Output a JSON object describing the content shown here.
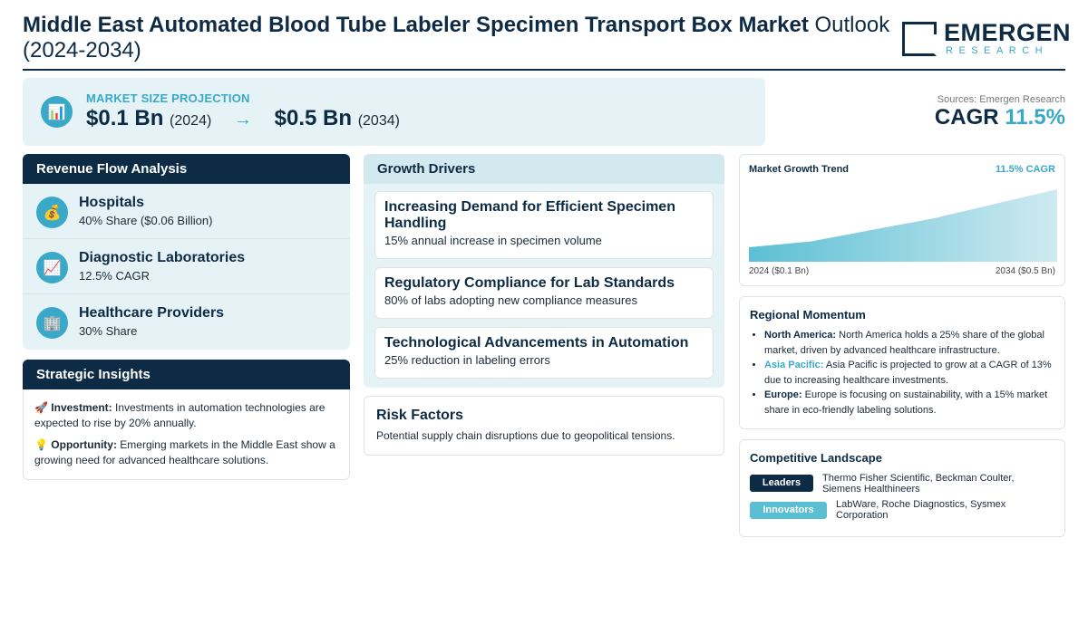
{
  "header": {
    "title_bold": "Middle East Automated Blood Tube Labeler Specimen Transport Box Market",
    "title_light": "Outlook (2024-2034)",
    "logo_main": "EMERGEN",
    "logo_sub": "RESEARCH"
  },
  "projection": {
    "label": "MARKET SIZE PROJECTION",
    "icon": "bar-chart-icon",
    "start_value": "$0.1 Bn",
    "start_year": "(2024)",
    "arrow": "→",
    "end_value": "$0.5 Bn",
    "end_year": "(2034)"
  },
  "summary": {
    "sources": "Sources: Emergen Research",
    "cagr_label": "CAGR",
    "cagr_value": "11.5%"
  },
  "revenue_flow": {
    "title": "Revenue Flow Analysis",
    "items": [
      {
        "icon": "💰",
        "icon_name": "money-bag-icon",
        "name": "Hospitals",
        "detail": "40% Share ($0.06 Billion)"
      },
      {
        "icon": "📈",
        "icon_name": "trend-up-icon",
        "name": "Diagnostic Laboratories",
        "detail": "12.5% CAGR"
      },
      {
        "icon": "🏢",
        "icon_name": "building-icon",
        "name": "Healthcare Providers",
        "detail": "30% Share"
      }
    ]
  },
  "strategic_insights": {
    "title": "Strategic Insights",
    "investment_icon": "🚀",
    "investment_label": "Investment:",
    "investment_text": "Investments in automation technologies are expected to rise by 20% annually.",
    "opportunity_icon": "💡",
    "opportunity_label": "Opportunity:",
    "opportunity_text": "Emerging markets in the Middle East show a growing need for advanced healthcare solutions."
  },
  "growth_drivers": {
    "title": "Growth Drivers",
    "items": [
      {
        "title": "Increasing Demand for Efficient Specimen Handling",
        "detail": "15% annual increase in specimen volume"
      },
      {
        "title": "Regulatory Compliance for Lab Standards",
        "detail": "80% of labs adopting new compliance measures"
      },
      {
        "title": "Technological Advancements in Automation",
        "detail": "25% reduction in labeling errors"
      }
    ]
  },
  "risk_factors": {
    "title": "Risk Factors",
    "detail": "Potential supply chain disruptions due to geopolitical tensions."
  },
  "trend": {
    "title": "Market Growth Trend",
    "cagr": "11.5% CAGR",
    "start_label": "2024 ($0.1 Bn)",
    "end_label": "2034 ($0.5 Bn)"
  },
  "chart_data": {
    "type": "area",
    "x": [
      2024,
      2026,
      2030,
      2034
    ],
    "values": [
      0.1,
      0.14,
      0.3,
      0.5
    ],
    "xlim": [
      2024,
      2034
    ],
    "ylim": [
      0,
      0.5
    ],
    "color": "#3aa8c9",
    "grid": false
  },
  "regional_momentum": {
    "title": "Regional Momentum",
    "items": [
      {
        "region": "North America:",
        "text": "North America holds a 25% share of the global market, driven by advanced healthcare infrastructure."
      },
      {
        "region": "Asia Pacific:",
        "text": "Asia Pacific is projected to grow at a CAGR of 13% due to increasing healthcare investments."
      },
      {
        "region": "Europe:",
        "text": "Europe is focusing on sustainability, with a 15% market share in eco-friendly labeling solutions."
      }
    ]
  },
  "competitive_landscape": {
    "title": "Competitive Landscape",
    "leaders_label": "Leaders",
    "leaders": "Thermo Fisher Scientific, Beckman Coulter, Siemens Healthineers",
    "innovators_label": "Innovators",
    "innovators": "LabWare, Roche Diagnostics, Sysmex Corporation"
  },
  "colors": {
    "navy": "#0d2b45",
    "teal": "#3aa8c9",
    "light_panel": "#e6f3f6"
  }
}
